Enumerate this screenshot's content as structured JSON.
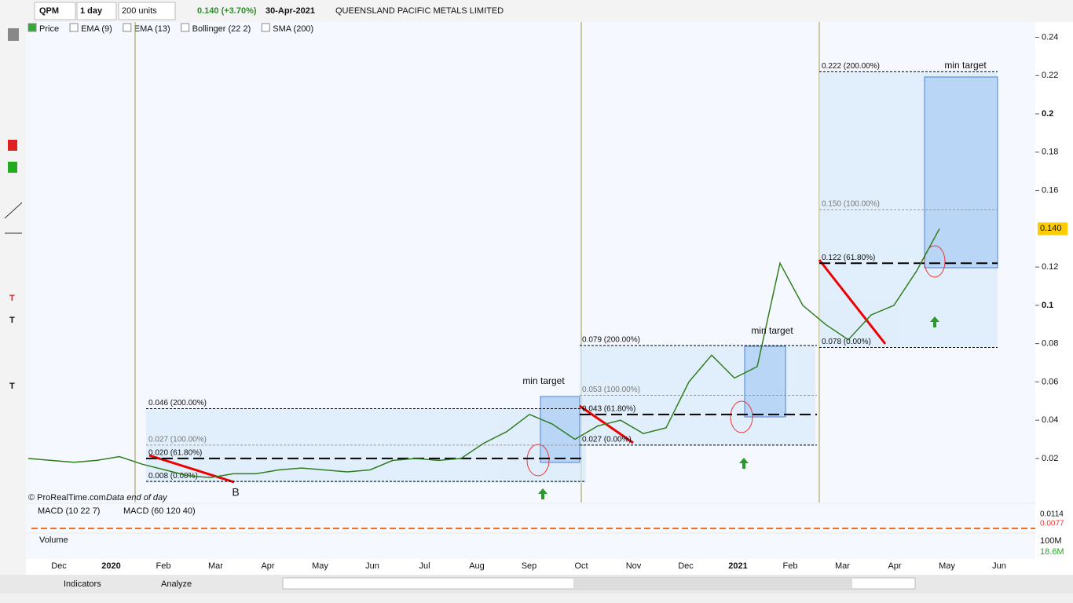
{
  "toolbar": {
    "symbol": "QPM",
    "period": "1 day",
    "units": "200 units",
    "change": "0.140 (+3.70%)",
    "date": "30-Apr-2021",
    "company": "QUEENSLAND PACIFIC METALS LIMITED"
  },
  "legend": [
    "Price",
    "EMA (9)",
    "EMA (13)",
    "Bollinger (22 2)",
    "SMA (200)"
  ],
  "chart_data": {
    "type": "line",
    "color": "#2e7d1e",
    "series": [
      {
        "name": "Price",
        "color": "#2e7d1e",
        "values": [
          0.02,
          0.019,
          0.018,
          0.019,
          0.021,
          0.017,
          0.014,
          0.011,
          0.01,
          0.012,
          0.012,
          0.014,
          0.015,
          0.014,
          0.013,
          0.014,
          0.019,
          0.02,
          0.019,
          0.02,
          0.028,
          0.034,
          0.043,
          0.038,
          0.03,
          0.037,
          0.04,
          0.033,
          0.036,
          0.06,
          0.074,
          0.062,
          0.068,
          0.122,
          0.1,
          0.09,
          0.082,
          0.095,
          0.1,
          0.118,
          0.14
        ]
      }
    ],
    "ylim": [
      -0.003,
      0.248
    ],
    "yticks": [
      0.24,
      0.22,
      0.2,
      0.18,
      0.16,
      0.12,
      0.1,
      0.08,
      0.06,
      0.04,
      0.02
    ],
    "xticks": [
      "Dec",
      "2020",
      "Feb",
      "Mar",
      "Apr",
      "May",
      "Jun",
      "Jul",
      "Aug",
      "Sep",
      "Oct",
      "Nov",
      "Dec",
      "2021",
      "Feb",
      "Mar",
      "Apr",
      "May",
      "Jun"
    ],
    "last_price": {
      "value": 0.14,
      "label": "0.140"
    },
    "fib_sets": [
      {
        "levels": [
          {
            "value": 0.046,
            "label": "0.046 (200.00%)"
          },
          {
            "value": 0.027,
            "label": "0.027 (100.00%)"
          },
          {
            "value": 0.02,
            "label": "0.020 (61.80%)"
          },
          {
            "value": 0.008,
            "label": "0.008 (0.00%)"
          }
        ]
      },
      {
        "levels": [
          {
            "value": 0.079,
            "label": "0.079 (200.00%)"
          },
          {
            "value": 0.053,
            "label": "0.053 (100.00%)"
          },
          {
            "value": 0.043,
            "label": "0.043 (61.80%)"
          },
          {
            "value": 0.027,
            "label": "0.027 (0.00%)"
          }
        ]
      },
      {
        "levels": [
          {
            "value": 0.222,
            "label": "0.222 (200.00%)"
          },
          {
            "value": 0.15,
            "label": "0.150 (100.00%)"
          },
          {
            "value": 0.122,
            "label": "0.122 (61.80%)"
          },
          {
            "value": 0.078,
            "label": "0.078 (0.00%)"
          }
        ]
      }
    ],
    "annotations": [
      "min target",
      "min target",
      "min target",
      "B"
    ]
  },
  "footer": {
    "copyright": "© ProRealTime.com",
    "data_note": "Data end of day"
  },
  "macd": {
    "labels": [
      "MACD (10 22 7)",
      "MACD (60 120 40)"
    ],
    "values": [
      "0.0114",
      "0.0077"
    ]
  },
  "volume": {
    "label": "Volume",
    "tick": "100M",
    "value": "18.6M"
  },
  "bottom": {
    "indicators": "Indicators",
    "analyze": "Analyze"
  }
}
